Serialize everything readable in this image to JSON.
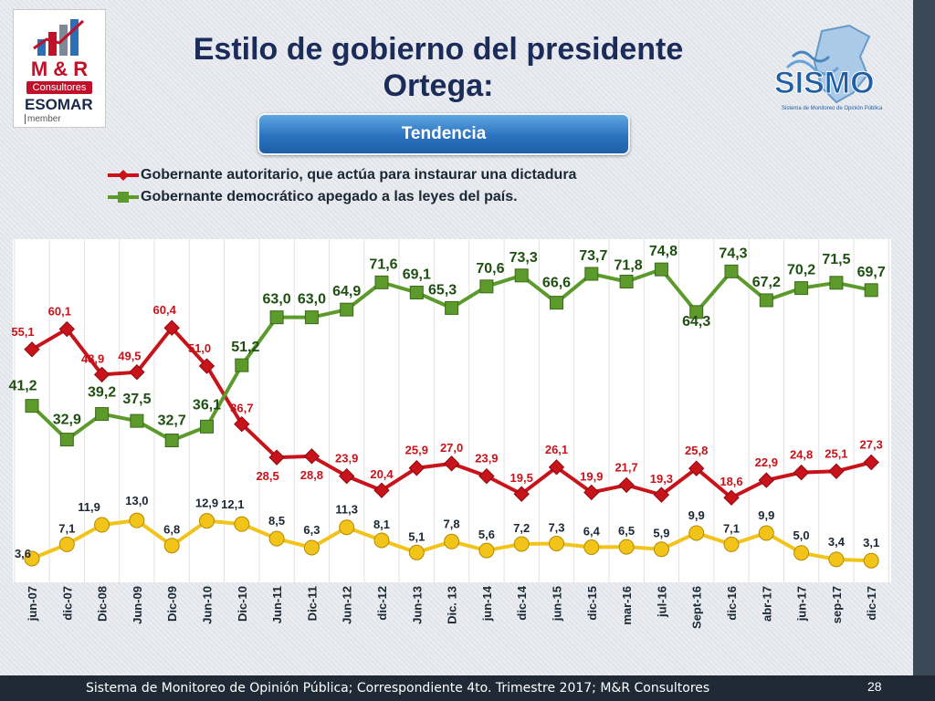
{
  "slide": {
    "title_line1": "Estilo de gobierno del presidente",
    "title_line2": "Ortega:",
    "tab_label": "Tendencia",
    "footer": "Sistema de Monitoreo de Opinión Pública; Correspondiente 4to. Trimestre 2017; M&R Consultores",
    "page_number": "28",
    "logo_left": {
      "brand": "M & R",
      "subtitle": "Consultores",
      "esomar": "ESOMAR",
      "member": "member"
    },
    "logo_right": {
      "name": "SISMO",
      "tagline": "Sistema de Monitoreo de Opinión Pública"
    }
  },
  "chart_data": {
    "type": "line",
    "categories": [
      "jun-07",
      "dic-07",
      "Dic-08",
      "Jun-09",
      "Dic-09",
      "Jun-10",
      "Dic-10",
      "Jun-11",
      "Dic-11",
      "Jun-12",
      "dic-12",
      "Jun-13",
      "Dic. 13",
      "jun-14",
      "dic-14",
      "jun-15",
      "dic-15",
      "mar-16",
      "jul-16",
      "Sept-16",
      "dic-16",
      "abr-17",
      "jun-17",
      "sep-17",
      "dic-17"
    ],
    "series": [
      {
        "name": "Gobernante autoritario, que actúa para instaurar una dictadura",
        "color": "#c8131b",
        "labels": [
          "55,1",
          "60,1",
          "48,9",
          "49,5",
          "60,4",
          "51,0",
          "36,7",
          "28,5",
          "28,8",
          "23,9",
          "20,4",
          "25,9",
          "27,0",
          "23,9",
          "19,5",
          "26,1",
          "19,9",
          "21,7",
          "19,3",
          "25,8",
          "18,6",
          "22,9",
          "24,8",
          "25,1",
          "27,3"
        ],
        "values": [
          55.1,
          60.1,
          48.9,
          49.5,
          60.4,
          51.0,
          36.7,
          28.5,
          28.8,
          23.9,
          20.4,
          25.9,
          27.0,
          23.9,
          19.5,
          26.1,
          19.9,
          21.7,
          19.3,
          25.8,
          18.6,
          22.9,
          24.8,
          25.1,
          27.3
        ]
      },
      {
        "name": "Gobernante  democrático apegado a las leyes del país.",
        "color": "#5c9a2b",
        "labels": [
          "41,2",
          "32,9",
          "39,2",
          "37,5",
          "32,7",
          "36,1",
          "51,2",
          "63,0",
          "63,0",
          "64,9",
          "71,6",
          "69,1",
          "65,3",
          "70,6",
          "73,3",
          "66,6",
          "73,7",
          "71,8",
          "74,8",
          "64,3",
          "74,3",
          "67,2",
          "70,2",
          "71,5",
          "69,7"
        ],
        "values": [
          41.2,
          32.9,
          39.2,
          37.5,
          32.7,
          36.1,
          51.2,
          63.0,
          63.0,
          64.9,
          71.6,
          69.1,
          65.3,
          70.6,
          73.3,
          66.6,
          73.7,
          71.8,
          74.8,
          64.3,
          74.3,
          67.2,
          70.2,
          71.5,
          69.7
        ]
      },
      {
        "name": "",
        "color": "#f2c318",
        "labels": [
          "3,6",
          "7,1",
          "11,9",
          "13,0",
          "6,8",
          "12,9",
          "12,1",
          "8,5",
          "6,3",
          "11,3",
          "8,1",
          "5,1",
          "7,8",
          "5,6",
          "7,2",
          "7,3",
          "6,4",
          "6,5",
          "5,9",
          "9,9",
          "7,1",
          "9,9",
          "5,0",
          "3,4",
          "3,1"
        ],
        "values": [
          3.6,
          7.1,
          11.9,
          13.0,
          6.8,
          12.9,
          12.1,
          8.5,
          6.3,
          11.3,
          8.1,
          5.1,
          7.8,
          5.6,
          7.2,
          7.3,
          6.4,
          6.5,
          5.9,
          9.9,
          7.1,
          9.9,
          5.0,
          3.4,
          3.1
        ]
      }
    ],
    "grid": "vertical",
    "legend_position": "top-left"
  }
}
